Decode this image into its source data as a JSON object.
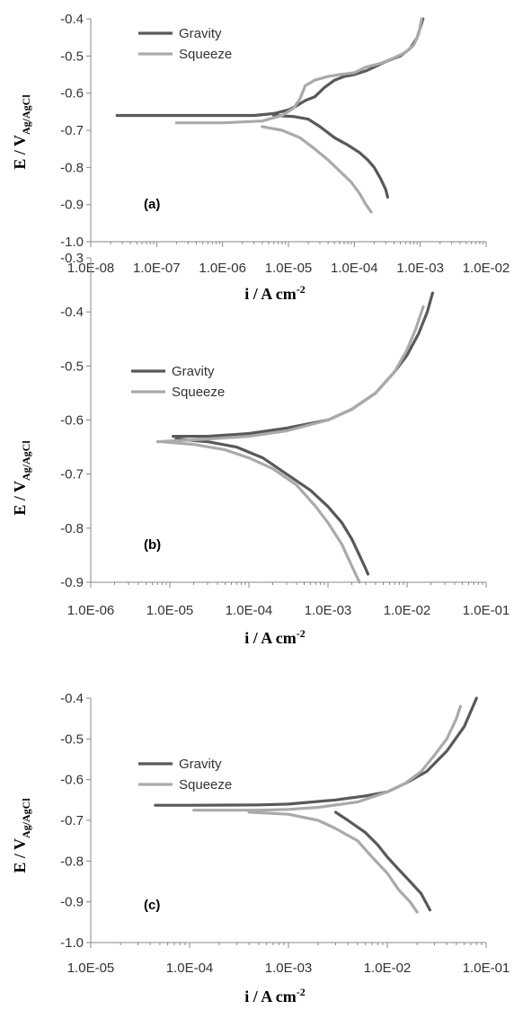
{
  "chart_data": [
    {
      "type": "line",
      "panel_label": "(a)",
      "xscale": "log",
      "xlim": [
        1e-08,
        0.01
      ],
      "ylim": [
        -1.0,
        -0.4
      ],
      "x_ticks": [
        "1.0E-08",
        "1.0E-07",
        "1.0E-06",
        "1.0E-05",
        "1.0E-04",
        "1.0E-03",
        "1.0E-02"
      ],
      "y_ticks": [
        "-0.4",
        "-0.5",
        "-0.6",
        "-0.7",
        "-0.8",
        "-0.9",
        "-1.0"
      ],
      "xlabel": {
        "main": "i / A cm",
        "sup": "-2"
      },
      "ylabel": {
        "main": "E / V",
        "sub": "Ag/AgCl"
      },
      "grid": false,
      "legend_position": "top-left",
      "series": [
        {
          "name": "Gravity",
          "color": "#595959",
          "x": [
            2.5e-08,
            1e-07,
            1e-06,
            3e-06,
            6e-06,
            1e-05,
            1.3e-05,
            1.8e-05,
            2.5e-05,
            3.5e-05,
            5e-05,
            7e-05,
            0.0001,
            0.00015,
            0.0002,
            0.0003,
            0.0005,
            0.0007,
            0.0009,
            0.0011,
            null,
            6e-06,
            1.2e-05,
            2e-05,
            3e-05,
            5e-05,
            8e-05,
            0.00012,
            0.00016,
            0.0002,
            0.00025,
            0.0003,
            0.00032
          ],
          "y": [
            -0.66,
            -0.66,
            -0.66,
            -0.66,
            -0.655,
            -0.645,
            -0.635,
            -0.62,
            -0.61,
            -0.585,
            -0.565,
            -0.555,
            -0.55,
            -0.54,
            -0.53,
            -0.515,
            -0.5,
            -0.48,
            -0.45,
            -0.4,
            null,
            -0.66,
            -0.663,
            -0.67,
            -0.69,
            -0.72,
            -0.74,
            -0.76,
            -0.78,
            -0.8,
            -0.83,
            -0.86,
            -0.88
          ]
        },
        {
          "name": "Squeeze",
          "color": "#aaaaaa",
          "x": [
            2e-07,
            1e-06,
            4e-06,
            8e-06,
            1.2e-05,
            1.5e-05,
            1.8e-05,
            2.5e-05,
            4e-05,
            6e-05,
            0.0001,
            0.00015,
            0.00025,
            0.0004,
            0.0006,
            0.0008,
            0.00095,
            0.00105,
            null,
            4e-06,
            8e-06,
            1.5e-05,
            2.5e-05,
            4e-05,
            6e-05,
            9e-05,
            0.00012,
            0.00015,
            0.00018
          ],
          "y": [
            -0.68,
            -0.68,
            -0.675,
            -0.66,
            -0.64,
            -0.615,
            -0.58,
            -0.565,
            -0.555,
            -0.55,
            -0.545,
            -0.53,
            -0.52,
            -0.505,
            -0.49,
            -0.47,
            -0.44,
            -0.4,
            null,
            -0.69,
            -0.7,
            -0.72,
            -0.75,
            -0.78,
            -0.81,
            -0.84,
            -0.87,
            -0.9,
            -0.92
          ]
        }
      ]
    },
    {
      "type": "line",
      "panel_label": "(b)",
      "xscale": "log",
      "xlim": [
        1e-06,
        0.1
      ],
      "ylim": [
        -0.9,
        -0.3
      ],
      "x_ticks": [
        "1.0E-06",
        "1.0E-05",
        "1.0E-04",
        "1.0E-03",
        "1.0E-02",
        "1.0E-01"
      ],
      "y_ticks": [
        "-0.3",
        "-0.4",
        "-0.5",
        "-0.6",
        "-0.7",
        "-0.8",
        "-0.9"
      ],
      "xlabel": {
        "main": "i / A cm",
        "sup": "-2"
      },
      "ylabel": {
        "main": "E / V",
        "sub": "Ag/AgCl"
      },
      "grid": false,
      "legend_position": "top-left",
      "series": [
        {
          "name": "Gravity",
          "color": "#595959",
          "x": [
            1.1e-05,
            3e-05,
            0.0001,
            0.0003,
            0.001,
            0.002,
            0.004,
            0.007,
            0.01,
            0.014,
            0.018,
            0.021,
            null,
            1.2e-05,
            3e-05,
            7e-05,
            0.00015,
            0.0003,
            0.0006,
            0.001,
            0.0015,
            0.002,
            0.0025,
            0.003,
            0.0032
          ],
          "y": [
            -0.63,
            -0.63,
            -0.625,
            -0.615,
            -0.6,
            -0.58,
            -0.55,
            -0.51,
            -0.48,
            -0.44,
            -0.4,
            -0.365,
            null,
            -0.635,
            -0.64,
            -0.65,
            -0.67,
            -0.7,
            -0.73,
            -0.76,
            -0.79,
            -0.82,
            -0.85,
            -0.875,
            -0.885
          ]
        },
        {
          "name": "Squeeze",
          "color": "#aaaaaa",
          "x": [
            7e-06,
            3e-05,
            0.0001,
            0.0003,
            0.001,
            0.002,
            0.004,
            0.007,
            0.01,
            0.013,
            0.016,
            null,
            8e-06,
            2e-05,
            5e-05,
            0.0001,
            0.0002,
            0.0004,
            0.0007,
            0.001,
            0.0015,
            0.002,
            0.0025
          ],
          "y": [
            -0.64,
            -0.635,
            -0.63,
            -0.62,
            -0.6,
            -0.58,
            -0.55,
            -0.51,
            -0.47,
            -0.43,
            -0.39,
            null,
            -0.64,
            -0.645,
            -0.655,
            -0.67,
            -0.69,
            -0.72,
            -0.76,
            -0.79,
            -0.83,
            -0.87,
            -0.9
          ]
        }
      ]
    },
    {
      "type": "line",
      "panel_label": "(c)",
      "xscale": "log",
      "xlim": [
        1e-05,
        0.1
      ],
      "ylim": [
        -1.0,
        -0.4
      ],
      "x_ticks": [
        "1.0E-05",
        "1.0E-04",
        "1.0E-03",
        "1.0E-02",
        "1.0E-01"
      ],
      "y_ticks": [
        "-0.4",
        "-0.5",
        "-0.6",
        "-0.7",
        "-0.8",
        "-0.9",
        "-1.0"
      ],
      "xlabel": {
        "main": "i / A cm",
        "sup": "-2"
      },
      "ylabel": {
        "main": "E / V",
        "sub": "Ag/AgCl"
      },
      "grid": false,
      "legend_position": "top-left",
      "series": [
        {
          "name": "Gravity",
          "color": "#595959",
          "x": [
            4.5e-05,
            0.0001,
            0.0005,
            0.001,
            0.003,
            0.006,
            0.01,
            0.015,
            0.025,
            0.04,
            0.06,
            0.08,
            null,
            0.003,
            0.004,
            0.006,
            0.008,
            0.01,
            0.013,
            0.017,
            0.022,
            0.027
          ],
          "y": [
            -0.663,
            -0.663,
            -0.662,
            -0.66,
            -0.65,
            -0.64,
            -0.63,
            -0.61,
            -0.58,
            -0.53,
            -0.47,
            -0.4,
            null,
            -0.68,
            -0.7,
            -0.73,
            -0.76,
            -0.79,
            -0.82,
            -0.85,
            -0.88,
            -0.92
          ]
        },
        {
          "name": "Squeeze",
          "color": "#aaaaaa",
          "x": [
            0.00011,
            0.0005,
            0.001,
            0.002,
            0.005,
            0.01,
            0.015,
            0.022,
            0.03,
            0.04,
            0.05,
            0.055,
            null,
            0.0004,
            0.001,
            0.002,
            0.003,
            0.005,
            0.007,
            0.01,
            0.013,
            0.017,
            0.02
          ],
          "y": [
            -0.675,
            -0.675,
            -0.673,
            -0.668,
            -0.655,
            -0.63,
            -0.61,
            -0.58,
            -0.54,
            -0.5,
            -0.45,
            -0.42,
            null,
            -0.68,
            -0.685,
            -0.7,
            -0.72,
            -0.75,
            -0.79,
            -0.83,
            -0.87,
            -0.9,
            -0.925
          ]
        }
      ]
    }
  ]
}
